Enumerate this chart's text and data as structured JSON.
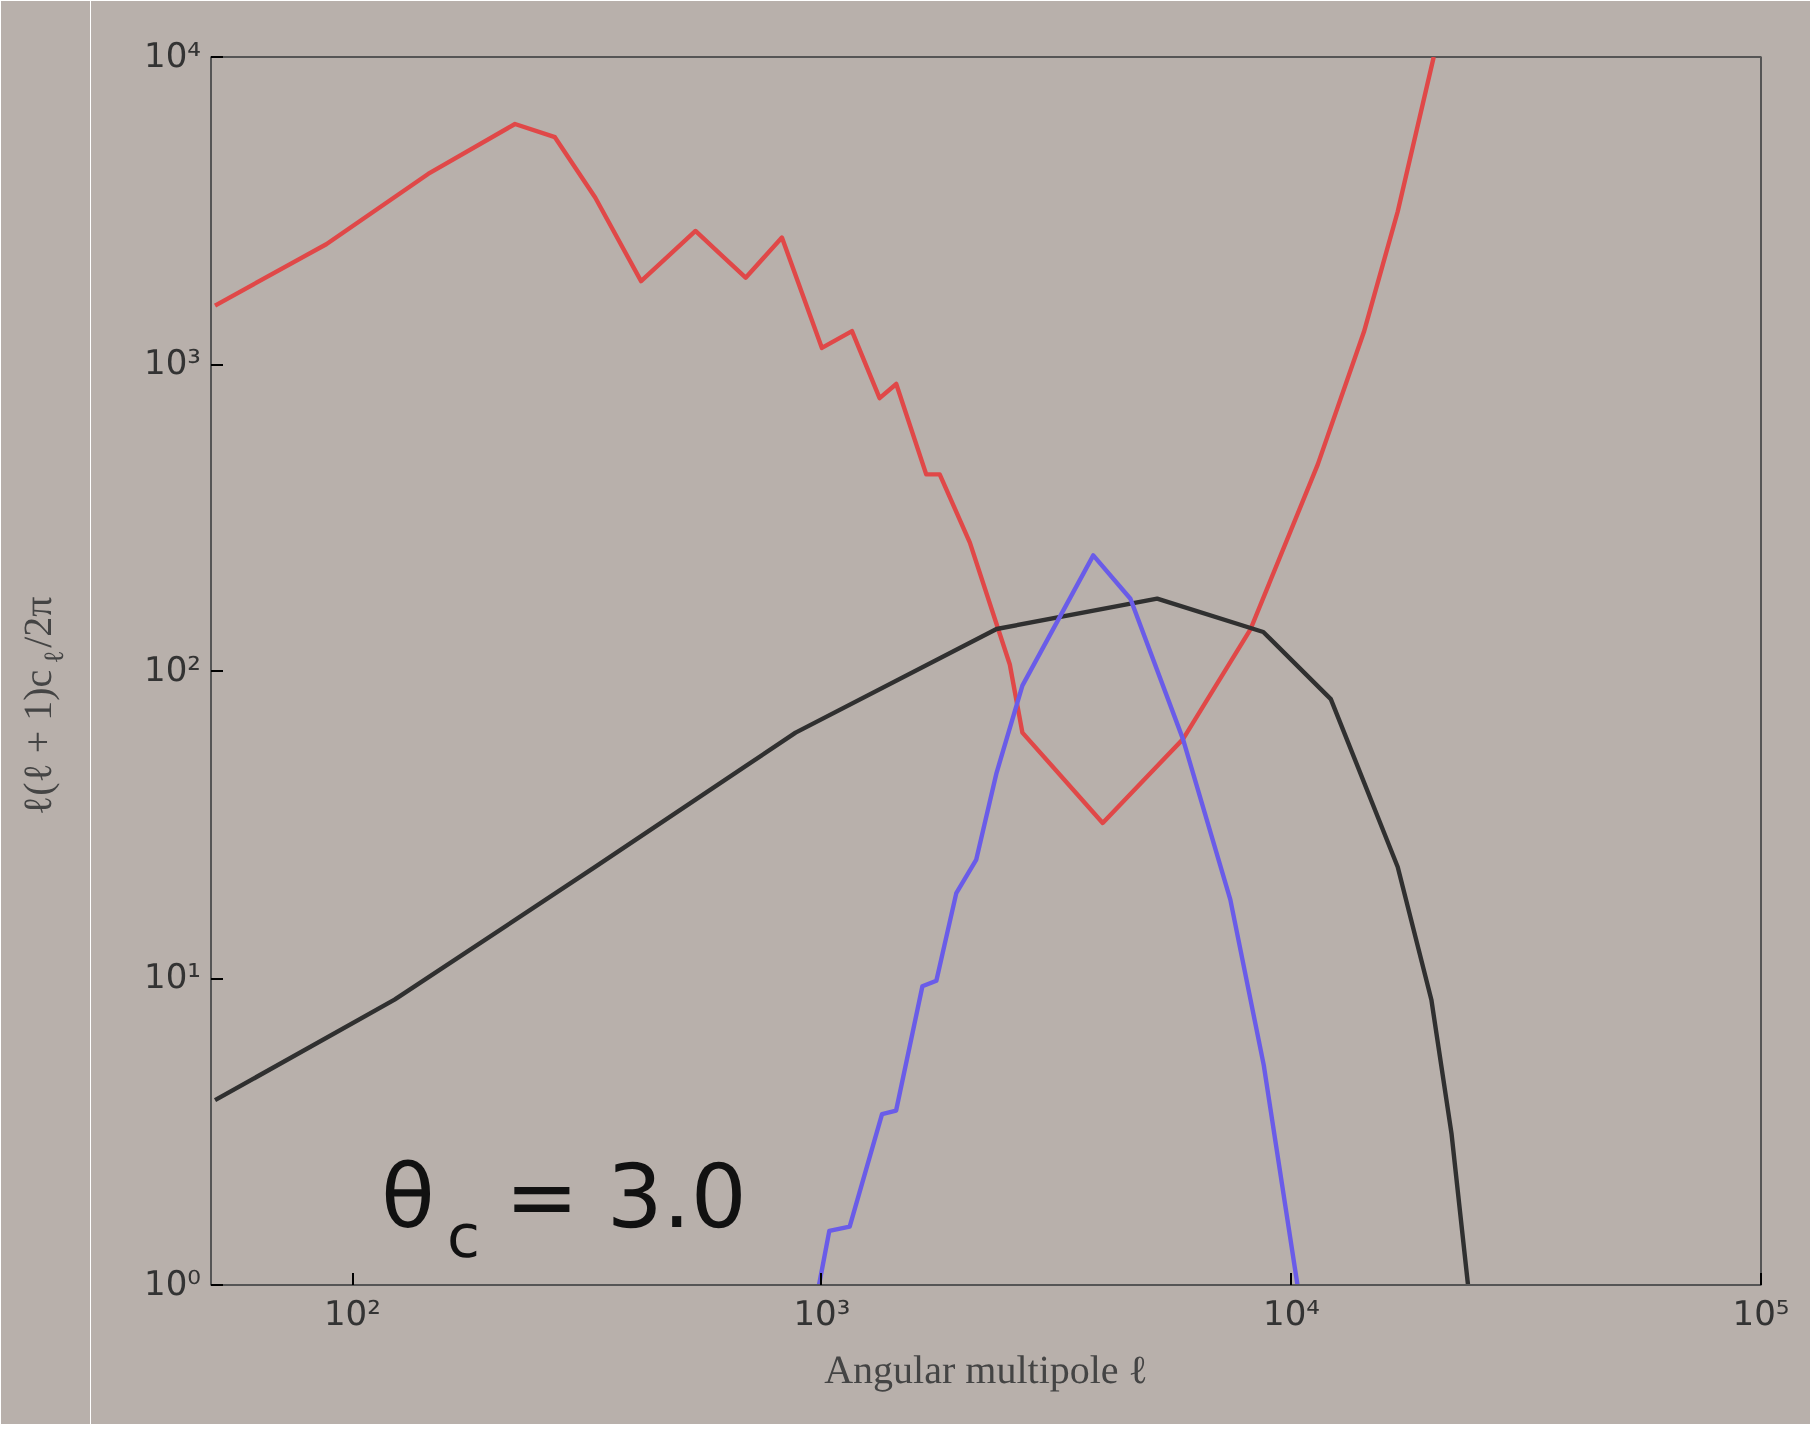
{
  "chart_data": {
    "type": "line",
    "xlabel": "Angular multipole ℓ",
    "ylabel": "ℓ(ℓ + 1)c$_{ℓ}$/2π",
    "log": "xy",
    "grid": false,
    "marker": "none",
    "line_style": "solid",
    "xlim": [
      50,
      100000
    ],
    "ylim": [
      1,
      10000
    ],
    "xticks": [
      {
        "value": 100,
        "label": "10²"
      },
      {
        "value": 1000,
        "label": "10³"
      },
      {
        "value": 10000,
        "label": "10⁴"
      },
      {
        "value": 100000,
        "label": "10⁵"
      }
    ],
    "yticks": [
      {
        "value": 1,
        "label": "10⁰"
      },
      {
        "value": 10,
        "label": "10¹"
      },
      {
        "value": 100,
        "label": "10²"
      },
      {
        "value": 1000,
        "label": "10³"
      },
      {
        "value": 10000,
        "label": "10⁴"
      }
    ],
    "annotations": [
      "θ$_{c}$ = 3.0"
    ],
    "series": [
      {
        "color": "#e04848",
        "x": [
          51,
          88,
          145,
          222,
          270,
          329,
          412,
          538,
          688,
          822,
          1000,
          1159,
          1327,
          1440,
          1668,
          1782,
          2066,
          2513,
          2673,
          3963,
          5875,
          8185,
          11380,
          14270,
          16840,
          20090
        ],
        "values": [
          1550,
          2456,
          4160,
          6050,
          5480,
          3485,
          1862,
          2712,
          1910,
          2582,
          1128,
          1280,
          774,
          861,
          437,
          437,
          262,
          105,
          63,
          32,
          60,
          137,
          471,
          1273,
          3139,
          10000
        ]
      },
      {
        "color": "#303030",
        "x": [
          51,
          123,
          329,
          879,
          2355,
          5176,
          8710,
          12130,
          16840,
          19860,
          21930,
          23770
        ],
        "values": [
          4.0,
          8.5,
          23,
          63,
          137,
          172,
          134,
          81,
          23,
          8.5,
          3.1,
          1
        ]
      },
      {
        "color": "#6a5ce8",
        "x": [
          986,
          1037,
          1146,
          1343,
          1439,
          1637,
          1753,
          1933,
          2132,
          2355,
          2673,
          3784,
          4540,
          5875,
          7410,
          8730,
          10300
        ],
        "values": [
          1,
          1.5,
          1.55,
          3.6,
          3.7,
          9.4,
          9.8,
          18.9,
          24.3,
          46.6,
          89.6,
          238,
          172,
          60,
          18,
          5.2,
          1
        ]
      }
    ]
  }
}
